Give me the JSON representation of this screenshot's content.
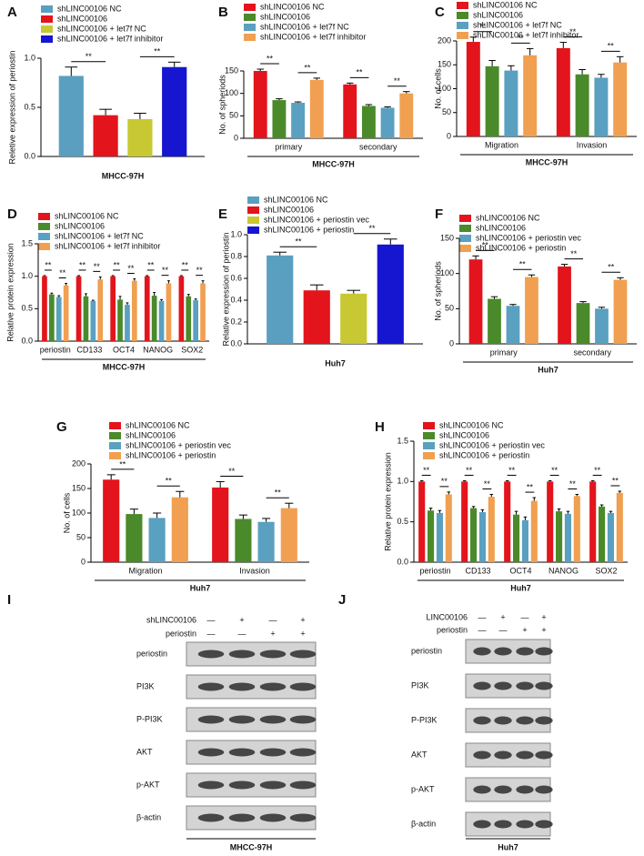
{
  "chart_data": [
    {
      "type": "bar",
      "panel": "A",
      "ylabel": "Reletive expression of periostin",
      "xlabel": "MHCC-97H",
      "categories": [
        null
      ],
      "ylim": [
        0,
        1.0
      ],
      "yticks": [
        {
          "value": 0,
          "label": "0.0"
        },
        0.5,
        {
          "value": 1.0,
          "label": "1.0"
        }
      ],
      "series": [
        {
          "name": "shLINC00106 NC",
          "color": "#5b9fc0",
          "values": [
            0.82
          ],
          "errors": [
            0.09
          ]
        },
        {
          "name": "shLINC00106",
          "color": "#e3141c",
          "values": [
            0.42
          ],
          "errors": [
            0.06
          ]
        },
        {
          "name": "shLINC00106 + let7f NC",
          "color": "#c8c832",
          "values": [
            0.38
          ],
          "errors": [
            0.06
          ]
        },
        {
          "name": "shLINC00106 + let7f inhibitor",
          "color": "#1616d0",
          "values": [
            0.91
          ],
          "errors": [
            0.05
          ]
        }
      ],
      "significance": [
        [
          "**",
          "**"
        ]
      ]
    },
    {
      "type": "bar",
      "panel": "B",
      "ylabel": "No. of spheriods",
      "xlabel": "MHCC-97H",
      "categories": [
        "primary",
        "secondary"
      ],
      "ylim": [
        0,
        150
      ],
      "yticks": [
        0,
        50,
        100,
        150
      ],
      "series": [
        {
          "name": "shLINC00106 NC",
          "color": "#e3141c",
          "values": [
            150,
            120
          ],
          "errors": [
            4,
            3
          ]
        },
        {
          "name": "shLINC00106",
          "color": "#4a8a2a",
          "values": [
            85,
            72
          ],
          "errors": [
            3,
            3
          ]
        },
        {
          "name": "shLINC00106 + let7f NC",
          "color": "#5aa0c0",
          "values": [
            79,
            68
          ],
          "errors": [
            2,
            2
          ]
        },
        {
          "name": "shLINC00106 + let7f inhibitor",
          "color": "#f0a050",
          "values": [
            130,
            100
          ],
          "errors": [
            4,
            4
          ]
        }
      ],
      "significance": [
        [
          "**",
          "**"
        ],
        [
          "**",
          "**"
        ]
      ]
    },
    {
      "type": "bar",
      "panel": "C",
      "ylabel": "No. of cells",
      "xlabel": "MHCC-97H",
      "categories": [
        "Migration",
        "Invasion"
      ],
      "ylim": [
        0,
        200
      ],
      "yticks": [
        0,
        50,
        100,
        150,
        200
      ],
      "series": [
        {
          "name": "shLINC00106 NC",
          "color": "#e3141c",
          "values": [
            198,
            185
          ],
          "errors": [
            10,
            12
          ]
        },
        {
          "name": "shLINC00106",
          "color": "#4a8a2a",
          "values": [
            147,
            130
          ],
          "errors": [
            12,
            10
          ]
        },
        {
          "name": "shLINC00106 + let7f NC",
          "color": "#5aa0c0",
          "values": [
            138,
            123
          ],
          "errors": [
            10,
            7
          ]
        },
        {
          "name": "shLINC00106 + let7f inhibitor",
          "color": "#f0a050",
          "values": [
            170,
            155
          ],
          "errors": [
            14,
            12
          ]
        }
      ],
      "significance": [
        [
          "**",
          "**"
        ],
        [
          "**",
          "**"
        ]
      ]
    },
    {
      "type": "bar",
      "panel": "D",
      "ylabel": "Relative protein expression",
      "xlabel": "MHCC-97H",
      "categories": [
        "periostin",
        "CD133",
        "OCT4",
        "NANOG",
        "SOX2"
      ],
      "ylim": [
        0,
        1.5
      ],
      "yticks": [
        {
          "value": 0,
          "label": "0.0"
        },
        0.5,
        {
          "value": 1.0,
          "label": "1.0"
        },
        1.5
      ],
      "series": [
        {
          "name": "shLINC00106 NC",
          "color": "#e3141c",
          "values": [
            1,
            1,
            1,
            1,
            1
          ],
          "errors": [
            0.01,
            0.01,
            0.01,
            0.01,
            0.01
          ]
        },
        {
          "name": "shLINC00106",
          "color": "#4a8a2a",
          "values": [
            0.72,
            0.69,
            0.64,
            0.7,
            0.69
          ],
          "errors": [
            0.02,
            0.04,
            0.05,
            0.05,
            0.03
          ]
        },
        {
          "name": "shLINC00106 + let7f NC",
          "color": "#5aa0c0",
          "values": [
            0.68,
            0.62,
            0.56,
            0.62,
            0.63
          ],
          "errors": [
            0.02,
            0.01,
            0.03,
            0.02,
            0.02
          ]
        },
        {
          "name": "shLINC00106 + let7f inhibitor",
          "color": "#f0a050",
          "values": [
            0.86,
            0.95,
            0.93,
            0.89,
            0.89
          ],
          "errors": [
            0.03,
            0.04,
            0.03,
            0.04,
            0.04
          ]
        }
      ],
      "significance": [
        [
          "**",
          "**"
        ],
        [
          "**",
          "**"
        ],
        [
          "**",
          "**"
        ],
        [
          "**",
          "**"
        ],
        [
          "**",
          "**"
        ]
      ]
    },
    {
      "type": "bar",
      "panel": "E",
      "ylabel": "Relative expression of periostin",
      "xlabel": "Huh7",
      "categories": [
        null
      ],
      "ylim": [
        0,
        1.0
      ],
      "yticks": [
        {
          "value": 0,
          "label": "0.0"
        },
        0.2,
        0.4,
        0.6,
        0.8,
        {
          "value": 1.0,
          "label": "1.0"
        }
      ],
      "series": [
        {
          "name": "shLINC00106 NC",
          "color": "#5b9fc0",
          "values": [
            0.81
          ],
          "errors": [
            0.03
          ]
        },
        {
          "name": "shLINC00106",
          "color": "#e3141c",
          "values": [
            0.49
          ],
          "errors": [
            0.05
          ]
        },
        {
          "name": "shLINC00106 + periostin vec",
          "color": "#c8c832",
          "values": [
            0.46
          ],
          "errors": [
            0.03
          ]
        },
        {
          "name": "shLINC00106 + periostin",
          "color": "#1616d0",
          "values": [
            0.91
          ],
          "errors": [
            0.05
          ]
        }
      ],
      "significance": [
        [
          "**",
          "**"
        ]
      ]
    },
    {
      "type": "bar",
      "panel": "F",
      "ylabel": "No. of spheriods",
      "xlabel": "Huh7",
      "categories": [
        "primary",
        "secondary"
      ],
      "ylim": [
        0,
        150
      ],
      "yticks": [
        0,
        50,
        100,
        150
      ],
      "series": [
        {
          "name": "shLINC00106 NC",
          "color": "#e3141c",
          "values": [
            120,
            110
          ],
          "errors": [
            5,
            3
          ]
        },
        {
          "name": "shLINC00106",
          "color": "#4a8a2a",
          "values": [
            64,
            58
          ],
          "errors": [
            3,
            2
          ]
        },
        {
          "name": "shLINC00106 + periostin vec",
          "color": "#5aa0c0",
          "values": [
            54,
            50
          ],
          "errors": [
            2,
            2
          ]
        },
        {
          "name": "shLINC00106 + periostin",
          "color": "#f0a050",
          "values": [
            95,
            91
          ],
          "errors": [
            3,
            3
          ]
        }
      ],
      "significance": [
        [
          "**",
          "**"
        ],
        [
          "**",
          "**"
        ]
      ]
    },
    {
      "type": "bar",
      "panel": "G",
      "ylabel": "No. of cells",
      "xlabel": "Huh7",
      "categories": [
        "Migration",
        "Invasion"
      ],
      "ylim": [
        0,
        200
      ],
      "yticks": [
        0,
        50,
        100,
        150,
        200
      ],
      "series": [
        {
          "name": "shLINC00106 NC",
          "color": "#e3141c",
          "values": [
            168,
            152
          ],
          "errors": [
            10,
            12
          ]
        },
        {
          "name": "shLINC00106",
          "color": "#4a8a2a",
          "values": [
            98,
            88
          ],
          "errors": [
            10,
            8
          ]
        },
        {
          "name": "shLINC00106 + periostin vec",
          "color": "#5aa0c0",
          "values": [
            90,
            82
          ],
          "errors": [
            10,
            7
          ]
        },
        {
          "name": "shLINC00106 + periostin",
          "color": "#f0a050",
          "values": [
            132,
            110
          ],
          "errors": [
            12,
            10
          ]
        }
      ],
      "significance": [
        [
          "**",
          "**"
        ],
        [
          "**",
          "**"
        ]
      ]
    },
    {
      "type": "bar",
      "panel": "H",
      "ylabel": "Relative protein expression",
      "xlabel": "Huh7",
      "categories": [
        "periostin",
        "CD133",
        "OCT4",
        "NANOG",
        "SOX2"
      ],
      "ylim": [
        0,
        1.5
      ],
      "yticks": [
        {
          "value": 0,
          "label": "0.0"
        },
        0.5,
        {
          "value": 1.0,
          "label": "1.0"
        },
        1.5
      ],
      "series": [
        {
          "name": "shLINC00106 NC",
          "color": "#e3141c",
          "values": [
            1,
            1,
            1,
            1,
            1
          ],
          "errors": [
            0.01,
            0.01,
            0.01,
            0.01,
            0.01
          ]
        },
        {
          "name": "shLINC00106",
          "color": "#4a8a2a",
          "values": [
            0.64,
            0.67,
            0.59,
            0.63,
            0.69
          ],
          "errors": [
            0.03,
            0.02,
            0.04,
            0.03,
            0.02
          ]
        },
        {
          "name": "shLINC00106 + periostin vec",
          "color": "#5aa0c0",
          "values": [
            0.61,
            0.62,
            0.52,
            0.6,
            0.61
          ],
          "errors": [
            0.03,
            0.03,
            0.04,
            0.03,
            0.02
          ]
        },
        {
          "name": "shLINC00106 + periostin",
          "color": "#f0a050",
          "values": [
            0.84,
            0.81,
            0.76,
            0.82,
            0.86
          ],
          "errors": [
            0.03,
            0.03,
            0.04,
            0.02,
            0.02
          ]
        }
      ],
      "significance": [
        [
          "**",
          "**"
        ],
        [
          "**",
          "**"
        ],
        [
          "**",
          "**"
        ],
        [
          "**",
          "**"
        ],
        [
          "**",
          "**"
        ]
      ]
    }
  ],
  "blots": [
    {
      "panel": "I",
      "conditions": [
        {
          "name": "shLINC00106",
          "marks": [
            "—",
            "+",
            "—",
            "+"
          ]
        },
        {
          "name": "periostin",
          "marks": [
            "—",
            "—",
            "+",
            "+"
          ]
        }
      ],
      "rows": [
        "periostin",
        "PI3K",
        "P-PI3K",
        "AKT",
        "p-AKT",
        "β-actin"
      ],
      "cell_line": "MHCC-97H"
    },
    {
      "panel": "J",
      "conditions": [
        {
          "name": "LINC00106",
          "marks": [
            "—",
            "+",
            "—",
            "+"
          ]
        },
        {
          "name": "periostin",
          "marks": [
            "—",
            "—",
            "+",
            "+"
          ]
        }
      ],
      "rows": [
        "periostin",
        "PI3K",
        "P-PI3K",
        "AKT",
        "p-AKT",
        "β-actin"
      ],
      "cell_line": "Huh7"
    }
  ]
}
